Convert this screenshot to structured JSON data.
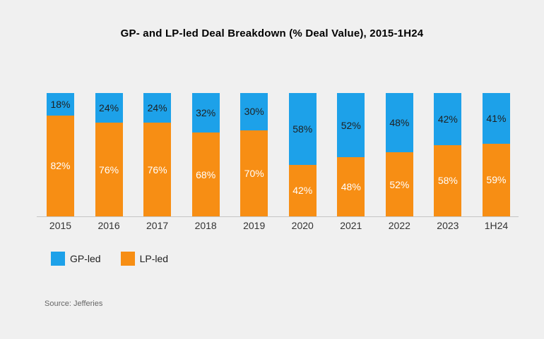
{
  "chart_data": {
    "type": "bar",
    "stacked": true,
    "percent": true,
    "title": "GP- and LP-led Deal Breakdown (% Deal Value), 2015-1H24",
    "categories": [
      "2015",
      "2016",
      "2017",
      "2018",
      "2019",
      "2020",
      "2021",
      "2022",
      "2023",
      "1H24"
    ],
    "series": [
      {
        "name": "GP-led",
        "color": "#1DA1E9",
        "label_color": "#1F1F1F",
        "values": [
          18,
          24,
          24,
          32,
          30,
          58,
          52,
          48,
          42,
          41
        ]
      },
      {
        "name": "LP-led",
        "color": "#F78E14",
        "label_color": "#FFFFFF",
        "values": [
          82,
          76,
          76,
          68,
          70,
          42,
          48,
          52,
          58,
          59
        ]
      }
    ],
    "ylim": [
      0,
      100
    ],
    "grid": false,
    "y_axis_visible": false,
    "legend_position": "bottom-left",
    "value_label_format": "{value}%"
  },
  "legend": {
    "items": [
      {
        "label": "GP-led",
        "color": "#1DA1E9"
      },
      {
        "label": "LP-led",
        "color": "#F78E14"
      }
    ]
  },
  "source_note": "Source: Jefferies",
  "colors": {
    "background": "#F0F0F0",
    "axis_line": "#C6C6C6",
    "tick_label": "#333333",
    "title": "#000000",
    "source": "#666666"
  }
}
